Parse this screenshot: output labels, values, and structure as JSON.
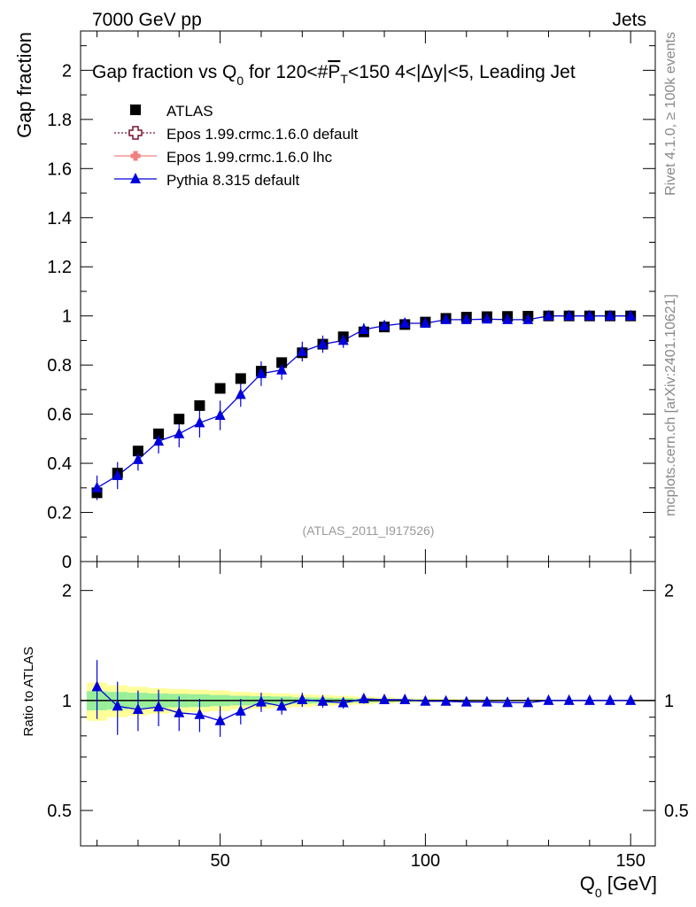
{
  "header": {
    "left": "7000 GeV pp",
    "right": "Jets"
  },
  "side_labels": {
    "rivet": "Rivet 4.1.0, ≥ 100k events",
    "mcplots": "mcplots.cern.ch [arXiv:2401.10621]"
  },
  "chart_data": {
    "type": "scatter",
    "title_parts": {
      "a": "Gap fraction vs Q",
      "a_sub": "0",
      "b": " for 120<#",
      "b_over": "P",
      "b_sub": "T",
      "c": "<150  4<|Δy|<5, Leading Jet"
    },
    "watermark": "(ATLAS_2011_I917526)",
    "xlabel": "Q",
    "xlabel_sub": "0",
    "xlabel_unit": " [GeV]",
    "ylabel": "Gap fraction",
    "ratio_ylabel": "Ratio to ATLAS",
    "xlim": [
      16,
      156
    ],
    "ylim": [
      0,
      2.16
    ],
    "ratio_ylim": [
      0.4,
      2.4
    ],
    "x_ticks": [
      50,
      100,
      150
    ],
    "x_tick_labels": [
      "50",
      "100",
      "150"
    ],
    "y_ticks": [
      0,
      0.2,
      0.4,
      0.6,
      0.8,
      1,
      1.2,
      1.4,
      1.6,
      1.8,
      2
    ],
    "y_tick_labels": [
      "0",
      "0.2",
      "0.4",
      "0.6",
      "0.8",
      "1",
      "1.2",
      "1.4",
      "1.6",
      "1.8",
      "2"
    ],
    "ratio_ticks": [
      0.5,
      1,
      2
    ],
    "ratio_tick_labels": [
      "0.5",
      "1",
      "2"
    ],
    "legend": [
      {
        "label": "ATLAS",
        "color": "#000000",
        "marker": "square"
      },
      {
        "label": "Epos 1.99.crmc.1.6.0 default",
        "color": "#7a1030",
        "marker": "open-cross"
      },
      {
        "label": "Epos 1.99.crmc.1.6.0 lhc",
        "color": "#f08080",
        "marker": "cross"
      },
      {
        "label": "Pythia 8.315 default",
        "color": "#0000dd",
        "marker": "triangle"
      }
    ],
    "x": [
      20,
      25,
      30,
      35,
      40,
      45,
      50,
      55,
      60,
      65,
      70,
      75,
      80,
      85,
      90,
      95,
      100,
      105,
      110,
      115,
      120,
      125,
      130,
      135,
      140,
      145,
      150
    ],
    "series": [
      {
        "name": "ATLAS",
        "values": [
          0.28,
          0.36,
          0.45,
          0.52,
          0.58,
          0.635,
          0.705,
          0.745,
          0.775,
          0.81,
          0.85,
          0.885,
          0.915,
          0.935,
          0.955,
          0.965,
          0.975,
          0.99,
          0.995,
          0.997,
          0.998,
          0.999,
          1.0,
          1.0,
          1.0,
          1.0,
          1.0
        ]
      },
      {
        "name": "Pythia 8.315 default",
        "values": [
          0.3,
          0.35,
          0.415,
          0.49,
          0.52,
          0.565,
          0.595,
          0.68,
          0.765,
          0.78,
          0.855,
          0.885,
          0.9,
          0.945,
          0.96,
          0.97,
          0.97,
          0.985,
          0.985,
          0.987,
          0.985,
          0.985,
          1.0,
          1.0,
          1.0,
          1.0,
          1.0
        ],
        "errors": [
          0.05,
          0.055,
          0.045,
          0.05,
          0.055,
          0.06,
          0.06,
          0.05,
          0.05,
          0.04,
          0.04,
          0.035,
          0.03,
          0.025,
          0.02,
          0.015,
          0.012,
          0.01,
          0.008,
          0.006,
          0.005,
          0.005,
          0.004,
          0.004,
          0.003,
          0.003,
          0.003
        ]
      }
    ],
    "ratio": {
      "values": [
        1.09,
        0.965,
        0.945,
        0.96,
        0.925,
        0.915,
        0.88,
        0.935,
        0.99,
        0.965,
        1.005,
        0.995,
        0.985,
        1.01,
        1.005,
        1.005,
        0.995,
        0.995,
        0.99,
        0.99,
        0.987,
        0.986,
        1.0,
        1.0,
        1.0,
        1.0,
        1.0
      ],
      "errors": [
        0.2,
        0.16,
        0.12,
        0.11,
        0.1,
        0.095,
        0.085,
        0.075,
        0.06,
        0.05,
        0.045,
        0.04,
        0.035,
        0.03,
        0.02,
        0.015,
        0.012,
        0.01,
        0.008,
        0.006,
        0.005,
        0.005,
        0.004,
        0.004,
        0.003,
        0.003,
        0.003
      ],
      "band_inner": [
        0.06,
        0.055,
        0.05,
        0.045,
        0.042,
        0.04,
        0.035,
        0.03,
        0.028,
        0.025,
        0.02,
        0.018,
        0.015,
        0.012,
        0.01,
        0.008,
        0.006,
        0.005,
        0.004,
        0.003,
        0.003,
        0.003,
        0.002,
        0.002,
        0.002,
        0.002,
        0.002
      ],
      "band_outer": [
        0.12,
        0.1,
        0.09,
        0.08,
        0.075,
        0.07,
        0.065,
        0.055,
        0.05,
        0.045,
        0.04,
        0.035,
        0.03,
        0.025,
        0.02,
        0.015,
        0.012,
        0.01,
        0.008,
        0.006,
        0.005,
        0.005,
        0.004,
        0.004,
        0.003,
        0.003,
        0.003
      ]
    }
  }
}
